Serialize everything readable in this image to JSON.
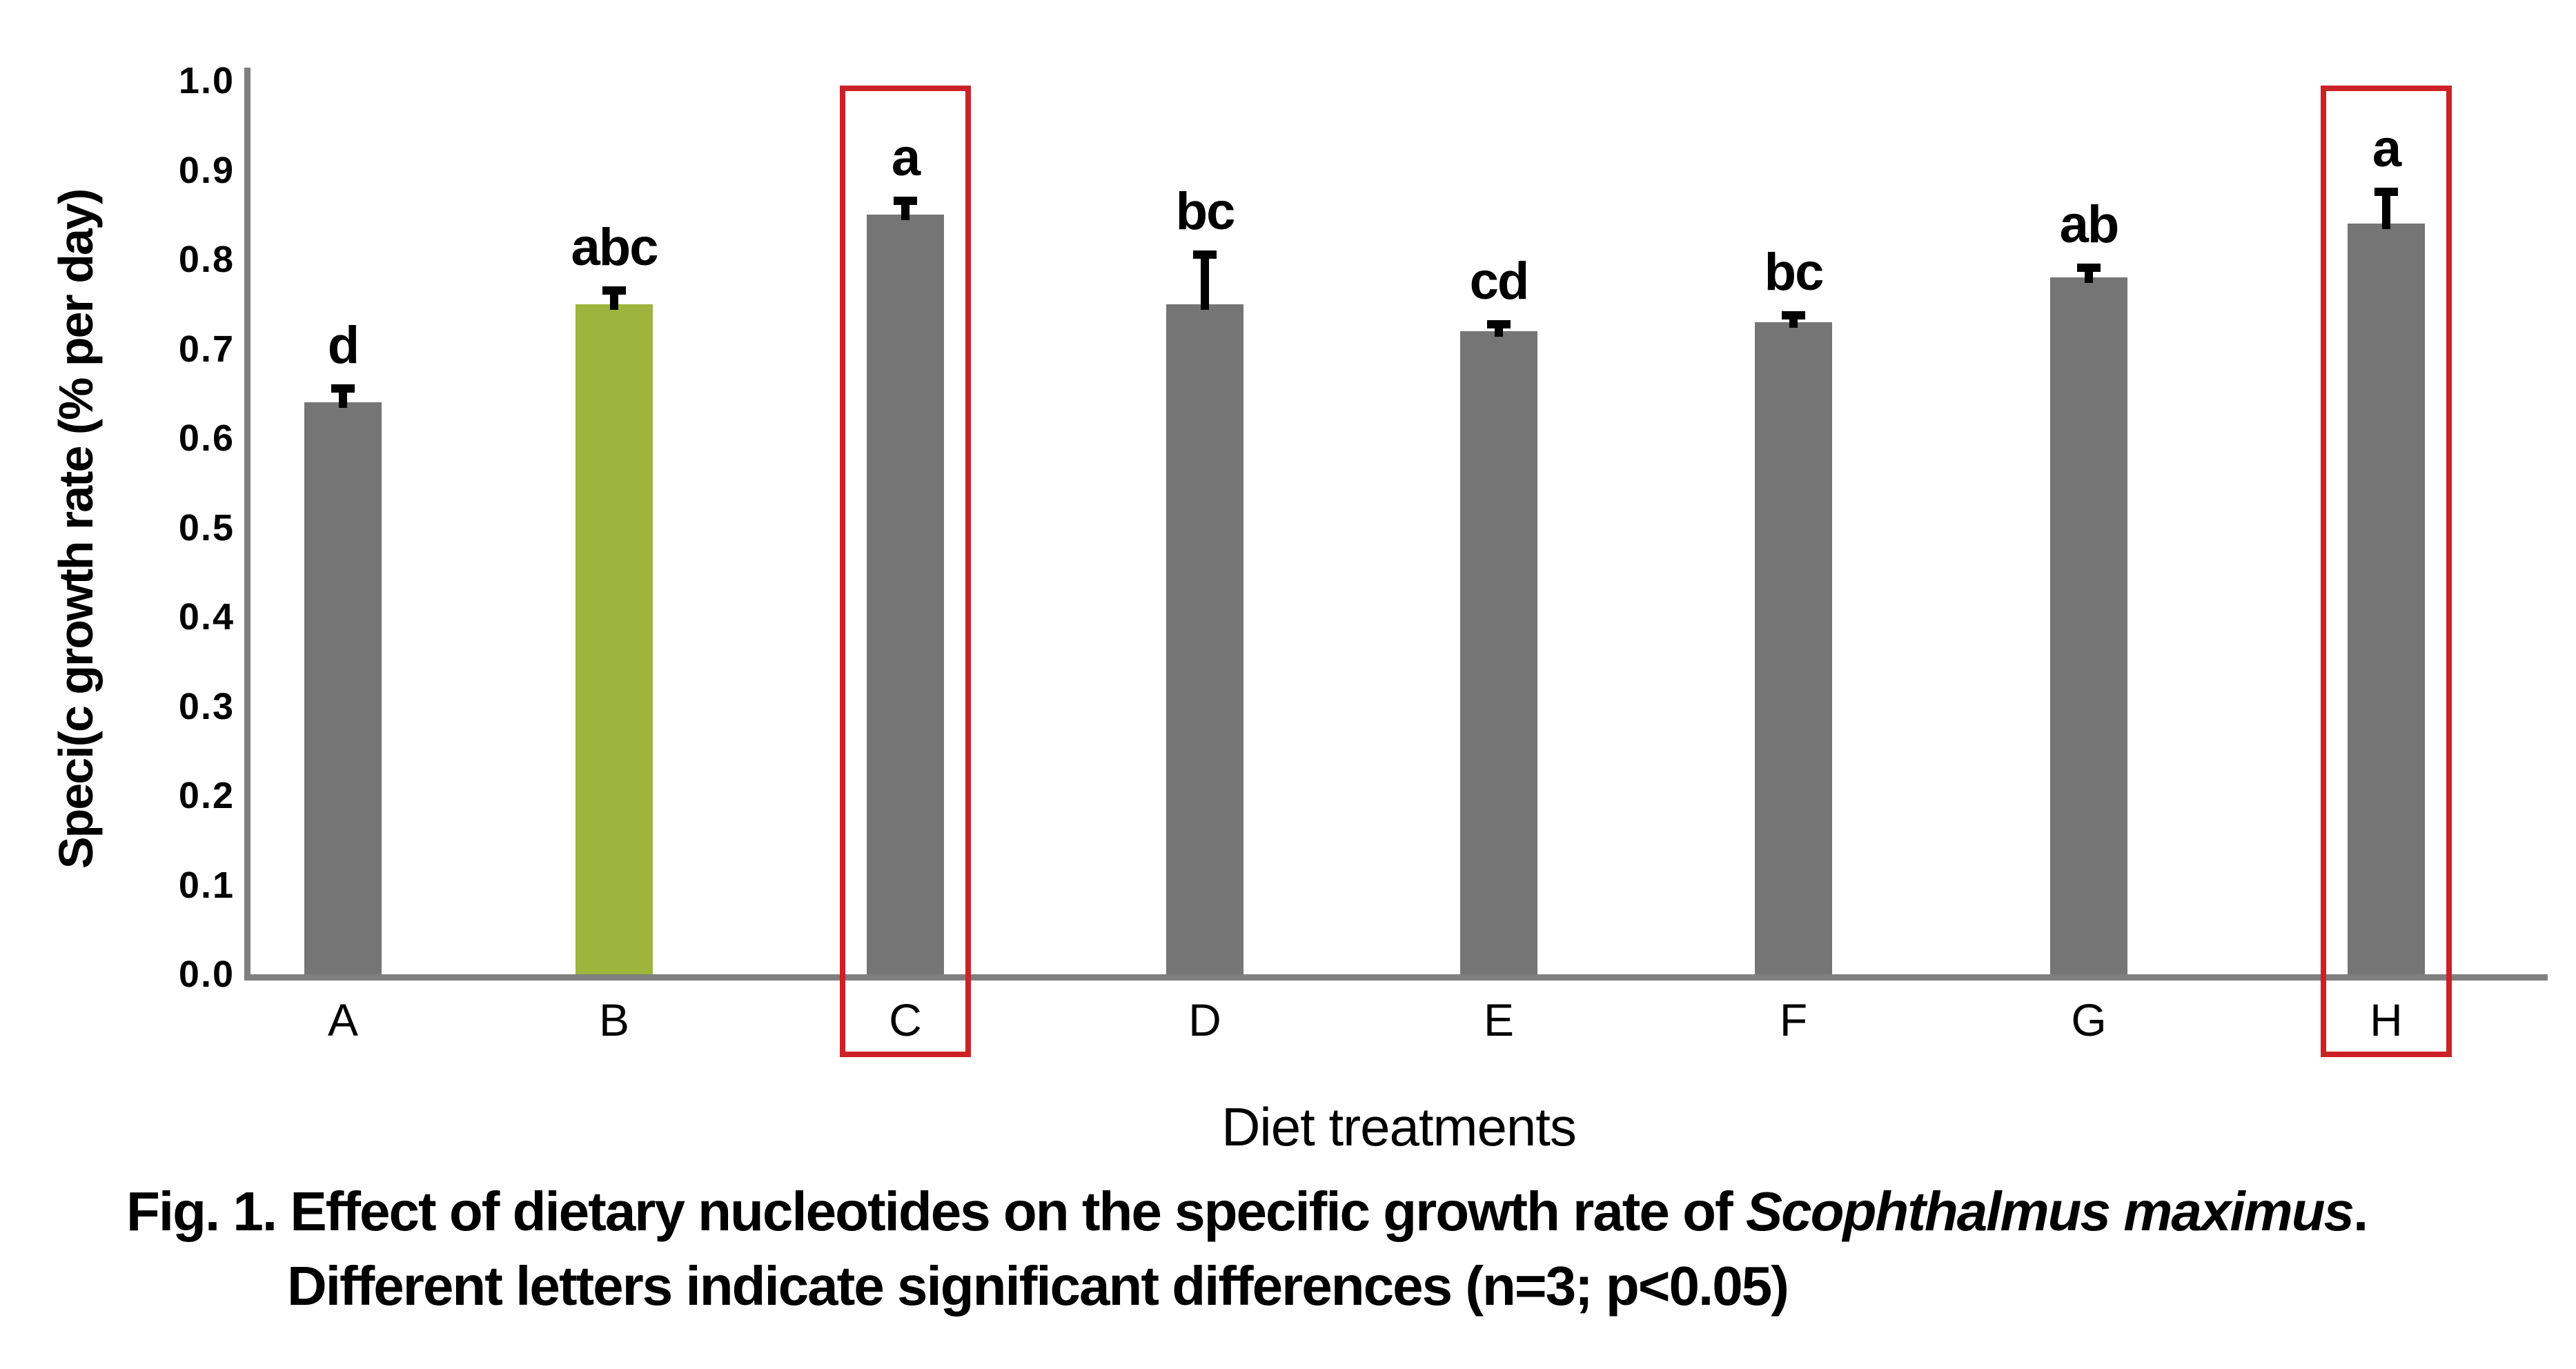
{
  "chart_data": {
    "type": "bar",
    "categories": [
      "A",
      "B",
      "C",
      "D",
      "E",
      "F",
      "G",
      "H"
    ],
    "values": [
      0.64,
      0.75,
      0.85,
      0.75,
      0.72,
      0.73,
      0.78,
      0.84
    ],
    "error_up": [
      0.02,
      0.02,
      0.02,
      0.06,
      0.012,
      0.012,
      0.015,
      0.04
    ],
    "sig_letters": [
      "d",
      "abc",
      "a",
      "bc",
      "cd",
      "bc",
      "ab",
      "a"
    ],
    "green_bar": "B",
    "red_boxed_bars": [
      "C",
      "H"
    ],
    "xlabel": "Diet treatments",
    "ylabel": "Speci(c growth rate (% per day)",
    "ylim": [
      0.0,
      1.0
    ],
    "ytick_labels": [
      "0.0",
      "0.1",
      "0.2",
      "0.3",
      "0.4",
      "0.5",
      "0.6",
      "0.7",
      "0.8",
      "0.9",
      "1.0"
    ],
    "grid": "off",
    "legend": "none",
    "colors": {
      "bar": "#757575",
      "green_bar": "#9eb43c",
      "red_box": "#cb2127",
      "axis": "#7f7f7f",
      "text": "#000000"
    }
  },
  "caption": {
    "line1_prefix": "Fig. 1. Effect of dietary nucleotides on the specific growth rate of ",
    "line1_species_italic": "Scophthalmus maximus",
    "line1_suffix": ".",
    "line2": "Different letters indicate significant differences (n=3; p<0.05)"
  }
}
